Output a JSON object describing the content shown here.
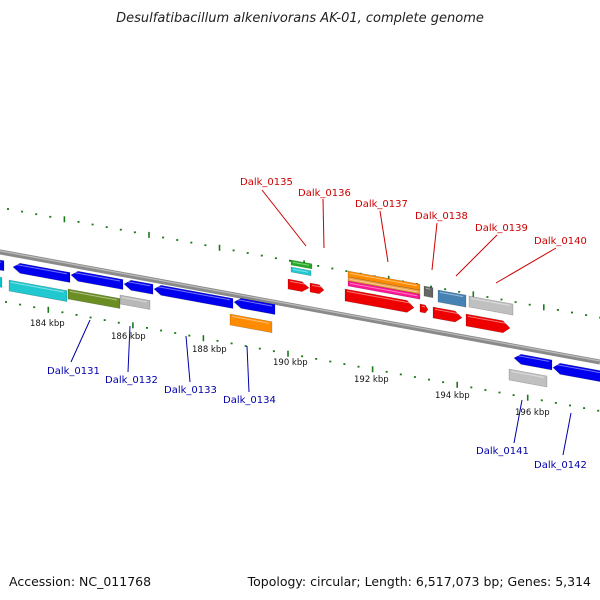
{
  "title": "Desulfatibacillum alkenivorans AK-01, complete genome",
  "footer": {
    "accession": "Accession: NC_011768",
    "summary": "Topology: circular; Length: 6,517,073 bp; Genes: 5,314"
  },
  "colors": {
    "backbone": "#8a8a8a",
    "tick": "#1a7a1a",
    "label_forward": "#cc0000",
    "label_reverse": "#0000aa"
  },
  "scale_labels": [
    "184 kbp",
    "186 kbp",
    "188 kbp",
    "190 kbp",
    "192 kbp",
    "194 kbp",
    "196 kbp"
  ],
  "labels_upper": [
    "Dalk_0135",
    "Dalk_0136",
    "Dalk_0137",
    "Dalk_0138",
    "Dalk_0139",
    "Dalk_0140"
  ],
  "labels_lower": [
    "Dalk_0131",
    "Dalk_0132",
    "Dalk_0133",
    "Dalk_0134",
    "Dalk_0141",
    "Dalk_0142"
  ]
}
